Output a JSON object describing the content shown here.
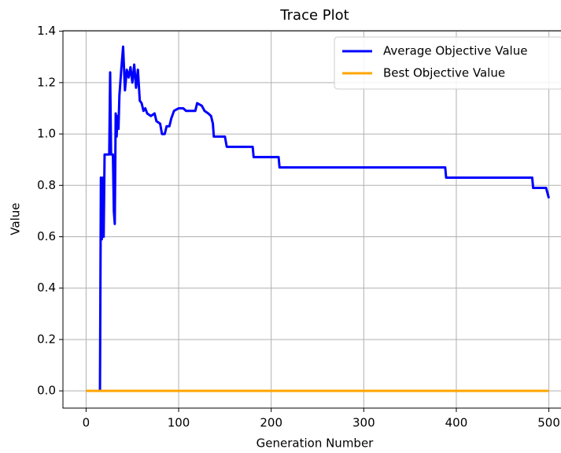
{
  "chart_data": {
    "type": "line",
    "title": "Trace Plot",
    "x_label": "Generation Number",
    "y_label": "Value",
    "xlim": [
      -25,
      525
    ],
    "ylim": [
      -0.067,
      1.402
    ],
    "xticks": [
      0,
      100,
      200,
      300,
      400,
      500
    ],
    "yticks": [
      {
        "value": 0,
        "label": "0.0"
      },
      {
        "value": 0.2,
        "label": "0.2"
      },
      {
        "value": 0.4,
        "label": "0.4"
      },
      {
        "value": 0.6,
        "label": "0.6"
      },
      {
        "value": 0.8,
        "label": "0.8"
      },
      {
        "value": 1.0,
        "label": "1.0"
      },
      {
        "value": 1.2,
        "label": "1.2"
      },
      {
        "value": 1.4,
        "label": "1.4"
      }
    ],
    "grid": true,
    "legend": "upper right",
    "series": [
      {
        "name": "Average Objective Value",
        "color": "#0000ff",
        "x": [
          15,
          16,
          17,
          18,
          19,
          20,
          25,
          26,
          27,
          29,
          30,
          31,
          32,
          33,
          34,
          35,
          36,
          38,
          40,
          42,
          44,
          46,
          48,
          50,
          52,
          54,
          56,
          58,
          60,
          62,
          64,
          66,
          70,
          74,
          76,
          80,
          82,
          85,
          87,
          90,
          92,
          95,
          100,
          105,
          108,
          118,
          120,
          125,
          128,
          132,
          135,
          137,
          138,
          150,
          152,
          180,
          181,
          208,
          209,
          388,
          389,
          482,
          483,
          497,
          500
        ],
        "values": [
          0.0,
          0.83,
          0.59,
          0.83,
          0.6,
          0.92,
          0.92,
          1.24,
          0.92,
          0.92,
          0.7,
          0.65,
          1.08,
          0.99,
          1.07,
          1.02,
          1.15,
          1.25,
          1.34,
          1.17,
          1.25,
          1.22,
          1.26,
          1.2,
          1.27,
          1.18,
          1.25,
          1.13,
          1.12,
          1.09,
          1.1,
          1.08,
          1.07,
          1.08,
          1.05,
          1.04,
          1.0,
          1.0,
          1.03,
          1.03,
          1.06,
          1.09,
          1.1,
          1.1,
          1.09,
          1.09,
          1.12,
          1.11,
          1.09,
          1.08,
          1.07,
          1.04,
          0.99,
          0.99,
          0.95,
          0.95,
          0.91,
          0.91,
          0.87,
          0.87,
          0.83,
          0.83,
          0.79,
          0.79,
          0.75
        ]
      },
      {
        "name": "Best Objective Value",
        "color": "#ffa500",
        "x": [
          0,
          500
        ],
        "values": [
          0,
          0
        ]
      }
    ]
  }
}
